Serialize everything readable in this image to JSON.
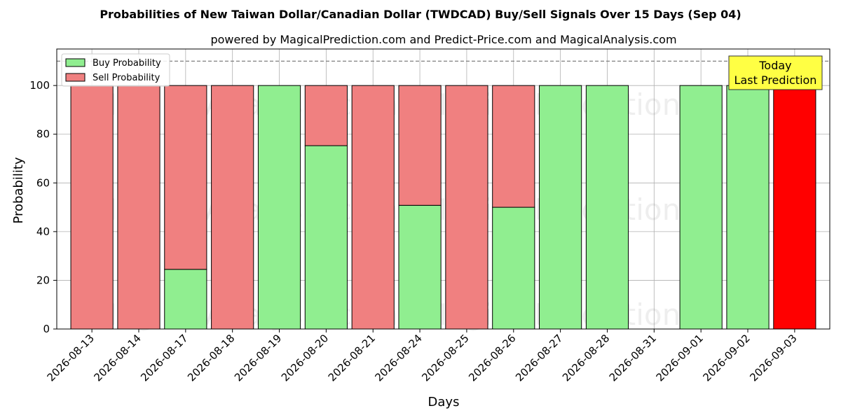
{
  "chart_data": {
    "type": "bar",
    "stacked": true,
    "title": "Probabilities of New Taiwan Dollar/Canadian Dollar (TWDCAD) Buy/Sell Signals Over 15 Days (Sep 04)",
    "subtitle": "powered by MagicalPrediction.com and Predict-Price.com and MagicalAnalysis.com",
    "xlabel": "Days",
    "ylabel": "Probability",
    "ylim": [
      0,
      115
    ],
    "yticks": [
      0,
      20,
      40,
      60,
      80,
      100
    ],
    "grid": true,
    "legend_placement": "top-left",
    "categories": [
      "2026-08-13",
      "2026-08-14",
      "2026-08-17",
      "2026-08-18",
      "2026-08-19",
      "2026-08-20",
      "2026-08-21",
      "2026-08-24",
      "2026-08-25",
      "2026-08-26",
      "2026-08-27",
      "2026-08-28",
      "2026-08-31",
      "2026-09-01",
      "2026-09-02",
      "2026-09-03"
    ],
    "series": [
      {
        "name": "Buy Probability",
        "color": "#90ee90",
        "values": [
          0,
          0,
          24.5,
          0,
          100,
          75.3,
          0,
          50.8,
          0,
          50,
          100,
          100,
          0,
          100,
          100,
          0
        ]
      },
      {
        "name": "Sell Probability",
        "color": "#f08080",
        "values": [
          100,
          100,
          75.5,
          100,
          0,
          24.7,
          100,
          49.2,
          100,
          50,
          0,
          0,
          0,
          0,
          0,
          100
        ]
      }
    ],
    "highlight": {
      "index": 15,
      "color": "#ff0000"
    },
    "reference_line": {
      "y": 110,
      "style": "dashed",
      "color": "#808080"
    },
    "annotation": {
      "lines": [
        "Today",
        "Last Prediction"
      ],
      "background": "#ffff44"
    },
    "watermarks": [
      "MagicalAnalysis.com",
      "MagicalPrediction.com"
    ]
  }
}
